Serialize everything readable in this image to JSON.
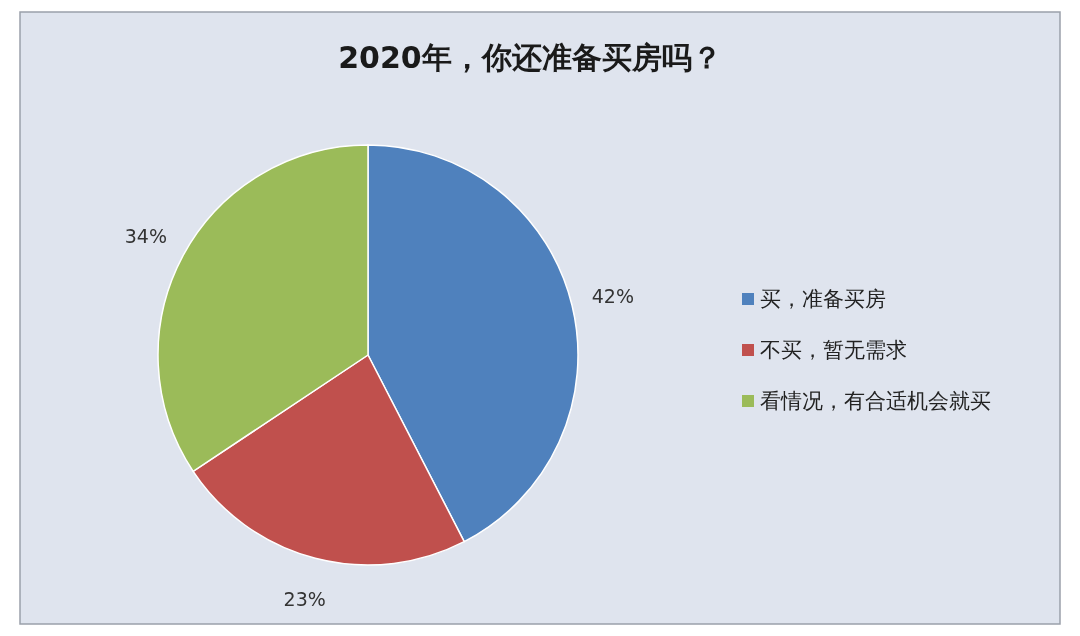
{
  "chart_data": {
    "type": "pie",
    "title": "2020年，你还准备买房吗？",
    "categories": [
      "买，准备买房",
      "不买，暂无需求",
      "看情况，有合适机会就买"
    ],
    "values": [
      42,
      23,
      34
    ],
    "colors": [
      "#4f81bd",
      "#c0504d",
      "#9bbb59"
    ],
    "value_labels": [
      "42%",
      "23%",
      "34%"
    ],
    "legend": "right"
  }
}
